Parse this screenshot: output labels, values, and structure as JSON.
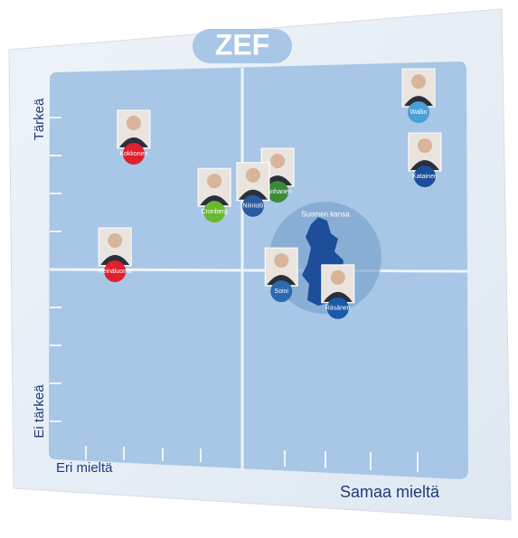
{
  "chart_data": {
    "type": "scatter",
    "title": "ZEF",
    "y_label_top": "Tärkeä",
    "y_label_bottom": "Ei tärkeä",
    "x_label_left": "Eri mieltä",
    "x_label_right": "Samaa mieltä",
    "xlim": [
      0,
      10
    ],
    "ylim": [
      0,
      10
    ],
    "points": [
      {
        "name": "Wallin",
        "x": 8.87,
        "y": 9.08,
        "color": "#4a9fd8"
      },
      {
        "name": "Kokkonen",
        "x": 2.02,
        "y": 8.0,
        "color": "#e0202e"
      },
      {
        "name": "Katainen",
        "x": 9.02,
        "y": 7.41,
        "color": "#1c4e9a"
      },
      {
        "name": "Vanhanen",
        "x": 5.48,
        "y": 7.01,
        "color": "#3a8a3a"
      },
      {
        "name": "Niinistö",
        "x": 4.89,
        "y": 6.64,
        "color": "#2a5aa0"
      },
      {
        "name": "Cronberg",
        "x": 3.96,
        "y": 6.49,
        "color": "#6ab830"
      },
      {
        "name": "Heinäluoma",
        "x": 1.57,
        "y": 4.94,
        "color": "#e0202e"
      },
      {
        "name": "Soini",
        "x": 5.57,
        "y": 4.42,
        "color": "#2a6ab0"
      },
      {
        "name": "Räsänen",
        "x": 6.93,
        "y": 3.98,
        "color": "#1a5aa8"
      }
    ],
    "group": {
      "name": "Suomen kansa",
      "x": 6.63,
      "y": 5.29,
      "color": "#7fa6cf"
    }
  }
}
